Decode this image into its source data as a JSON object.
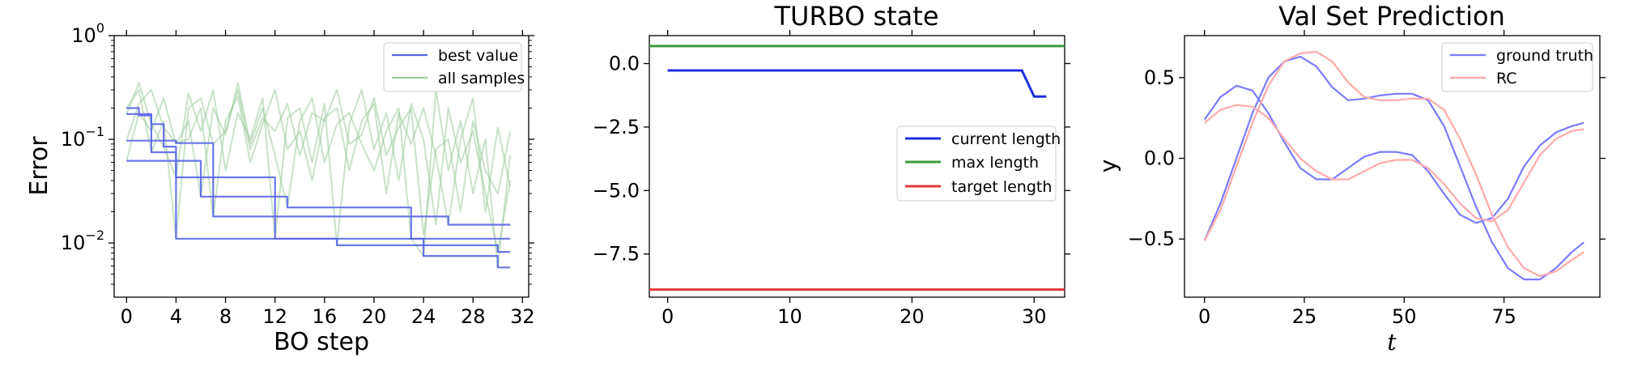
{
  "chart_data": [
    {
      "type": "line",
      "title": "",
      "xlabel": "BO step",
      "ylabel": "Error",
      "yscale": "log",
      "xlim": [
        -1,
        32.5
      ],
      "ylim": [
        0.003,
        1.0
      ],
      "xticks": [
        0,
        4,
        8,
        12,
        16,
        20,
        24,
        28,
        32
      ],
      "xtick_labels": [
        "0",
        "4",
        "8",
        "12",
        "16",
        "20",
        "24",
        "28",
        "32"
      ],
      "yticks": [
        0.01,
        0.1,
        1.0
      ],
      "ytick_labels": [
        {
          "base": "10",
          "exp": "−2"
        },
        {
          "base": "10",
          "exp": "−1"
        },
        {
          "base": "10",
          "exp": "0"
        }
      ],
      "legend": {
        "position": "top-right",
        "entries": [
          {
            "label": "best value",
            "color": "#5b67e8"
          },
          {
            "label": "all samples",
            "color": "#9ccb9c"
          }
        ]
      },
      "series": [
        {
          "legend": "best value",
          "color": "#5b67e8",
          "kind": "step",
          "x": [
            0,
            1,
            2,
            3,
            4,
            5,
            6,
            7,
            8,
            9,
            10,
            11,
            12,
            13,
            14,
            15,
            16,
            17,
            18,
            19,
            20,
            21,
            22,
            23,
            24,
            25,
            26,
            27,
            28,
            29,
            30,
            31
          ],
          "values": [
            0.2,
            0.175,
            0.075,
            0.075,
            0.011,
            0.011,
            0.011,
            0.011,
            0.011,
            0.011,
            0.011,
            0.011,
            0.011,
            0.011,
            0.011,
            0.011,
            0.011,
            0.011,
            0.011,
            0.011,
            0.011,
            0.011,
            0.011,
            0.011,
            0.011,
            0.011,
            0.011,
            0.011,
            0.011,
            0.011,
            0.011,
            0.011
          ]
        },
        {
          "color": "#5b67e8",
          "kind": "step",
          "x": [
            0,
            1,
            2,
            3,
            4,
            5,
            6,
            7,
            8,
            9,
            10,
            11,
            12,
            13,
            14,
            15,
            16,
            17,
            18,
            19,
            20,
            21,
            22,
            23,
            24,
            25,
            26,
            27,
            28,
            29,
            30,
            31
          ],
          "values": [
            0.175,
            0.17,
            0.14,
            0.085,
            0.043,
            0.043,
            0.043,
            0.043,
            0.043,
            0.043,
            0.043,
            0.043,
            0.011,
            0.011,
            0.011,
            0.011,
            0.011,
            0.0095,
            0.0095,
            0.0095,
            0.0095,
            0.0095,
            0.0095,
            0.0095,
            0.0095,
            0.0095,
            0.0095,
            0.0095,
            0.0095,
            0.0095,
            0.0082,
            0.0082
          ]
        },
        {
          "color": "#5b67e8",
          "kind": "step",
          "x": [
            0,
            1,
            2,
            3,
            4,
            5,
            6,
            7,
            8,
            9,
            10,
            11,
            12,
            13,
            14,
            15,
            16,
            17,
            18,
            19,
            20,
            21,
            22,
            23,
            24,
            25,
            26,
            27,
            28,
            29,
            30,
            31
          ],
          "values": [
            0.097,
            0.097,
            0.097,
            0.097,
            0.092,
            0.092,
            0.092,
            0.018,
            0.018,
            0.018,
            0.018,
            0.018,
            0.018,
            0.018,
            0.018,
            0.018,
            0.018,
            0.018,
            0.018,
            0.018,
            0.018,
            0.018,
            0.018,
            0.018,
            0.018,
            0.018,
            0.015,
            0.015,
            0.015,
            0.015,
            0.015,
            0.015
          ]
        },
        {
          "color": "#5b67e8",
          "kind": "step",
          "x": [
            0,
            1,
            2,
            3,
            4,
            5,
            6,
            7,
            8,
            9,
            10,
            11,
            12,
            13,
            14,
            15,
            16,
            17,
            18,
            19,
            20,
            21,
            22,
            23,
            24,
            25,
            26,
            27,
            28,
            29,
            30,
            31
          ],
          "values": [
            0.062,
            0.062,
            0.062,
            0.062,
            0.062,
            0.062,
            0.028,
            0.028,
            0.028,
            0.028,
            0.028,
            0.028,
            0.028,
            0.022,
            0.022,
            0.022,
            0.022,
            0.022,
            0.022,
            0.022,
            0.022,
            0.022,
            0.022,
            0.011,
            0.0075,
            0.0075,
            0.0075,
            0.0075,
            0.0075,
            0.0075,
            0.0058,
            0.0058
          ]
        },
        {
          "legend": "all samples",
          "color": "#9ccb9c",
          "kind": "line",
          "x": [
            0,
            1,
            2,
            3,
            4,
            5,
            6,
            7,
            8,
            9,
            10,
            11,
            12,
            13,
            14,
            15,
            16,
            17,
            18,
            19,
            20,
            21,
            22,
            23,
            24,
            25,
            26,
            27,
            28,
            29,
            30,
            31
          ],
          "values": [
            0.2,
            0.3,
            0.075,
            0.15,
            0.011,
            0.2,
            0.25,
            0.09,
            0.12,
            0.3,
            0.08,
            0.16,
            0.12,
            0.22,
            0.07,
            0.18,
            0.15,
            0.3,
            0.09,
            0.11,
            0.25,
            0.07,
            0.13,
            0.2,
            0.012,
            0.08,
            0.1,
            0.02,
            0.15,
            0.05,
            0.03,
            0.12
          ]
        },
        {
          "color": "#9ccb9c",
          "kind": "line",
          "x": [
            0,
            1,
            2,
            3,
            4,
            5,
            6,
            7,
            8,
            9,
            10,
            11,
            12,
            13,
            14,
            15,
            16,
            17,
            18,
            19,
            20,
            21,
            22,
            23,
            24,
            25,
            26,
            27,
            28,
            29,
            30,
            31
          ],
          "values": [
            0.175,
            0.35,
            0.14,
            0.085,
            0.043,
            0.28,
            0.12,
            0.3,
            0.05,
            0.18,
            0.1,
            0.25,
            0.011,
            0.16,
            0.2,
            0.06,
            0.22,
            0.0095,
            0.14,
            0.3,
            0.08,
            0.18,
            0.04,
            0.22,
            0.1,
            0.015,
            0.2,
            0.06,
            0.12,
            0.03,
            0.0082,
            0.04
          ]
        },
        {
          "color": "#9ccb9c",
          "kind": "line",
          "x": [
            0,
            1,
            2,
            3,
            4,
            5,
            6,
            7,
            8,
            9,
            10,
            11,
            12,
            13,
            14,
            15,
            16,
            17,
            18,
            19,
            20,
            21,
            22,
            23,
            24,
            25,
            26,
            27,
            28,
            29,
            30,
            31
          ],
          "values": [
            0.097,
            0.22,
            0.3,
            0.13,
            0.092,
            0.1,
            0.2,
            0.018,
            0.15,
            0.26,
            0.06,
            0.14,
            0.3,
            0.08,
            0.12,
            0.04,
            0.16,
            0.2,
            0.05,
            0.15,
            0.22,
            0.03,
            0.18,
            0.09,
            0.2,
            0.07,
            0.015,
            0.1,
            0.25,
            0.02,
            0.13,
            0.035
          ]
        },
        {
          "color": "#9ccb9c",
          "kind": "line",
          "x": [
            0,
            1,
            2,
            3,
            4,
            5,
            6,
            7,
            8,
            9,
            10,
            11,
            12,
            13,
            14,
            15,
            16,
            17,
            18,
            19,
            20,
            21,
            22,
            23,
            24,
            25,
            26,
            27,
            28,
            29,
            30,
            31
          ],
          "values": [
            0.062,
            0.18,
            0.12,
            0.25,
            0.09,
            0.15,
            0.028,
            0.2,
            0.11,
            0.35,
            0.09,
            0.2,
            0.07,
            0.022,
            0.15,
            0.25,
            0.06,
            0.14,
            0.18,
            0.09,
            0.05,
            0.12,
            0.2,
            0.011,
            0.0075,
            0.3,
            0.05,
            0.15,
            0.03,
            0.1,
            0.0058,
            0.07
          ]
        }
      ]
    },
    {
      "type": "line",
      "title": "TURBO state",
      "xlabel": "",
      "ylabel": "",
      "xlim": [
        -1.5,
        32.5
      ],
      "ylim": [
        -9.2,
        1.1
      ],
      "xticks": [
        0,
        10,
        20,
        30
      ],
      "xtick_labels": [
        "0",
        "10",
        "20",
        "30"
      ],
      "yticks": [
        0.0,
        -2.5,
        -5.0,
        -7.5
      ],
      "ytick_labels": [
        "0.0",
        "−2.5",
        "−5.0",
        "−7.5"
      ],
      "legend": {
        "position": "center-right",
        "entries": [
          {
            "label": "current length",
            "color": "#1f2fe0"
          },
          {
            "label": "max length",
            "color": "#3a9a3a"
          },
          {
            "label": "target length",
            "color": "#e03a3a"
          }
        ]
      },
      "series": [
        {
          "name": "current length",
          "color": "#1f2fe0",
          "x": [
            0,
            29,
            30,
            31
          ],
          "values": [
            -0.27,
            -0.27,
            -1.3,
            -1.3
          ]
        },
        {
          "name": "max length",
          "color": "#3a9a3a",
          "x": [
            -1.5,
            32.5
          ],
          "values": [
            0.69,
            0.69
          ]
        },
        {
          "name": "target length",
          "color": "#e03a3a",
          "x": [
            -1.5,
            32.5
          ],
          "values": [
            -8.9,
            -8.9
          ]
        }
      ]
    },
    {
      "type": "line",
      "title": "Val Set Prediction",
      "xlabel": "t",
      "ylabel": "y",
      "xlim": [
        -5,
        99
      ],
      "ylim": [
        -0.86,
        0.76
      ],
      "xticks": [
        0,
        25,
        50,
        75
      ],
      "xtick_labels": [
        "0",
        "25",
        "50",
        "75"
      ],
      "yticks": [
        0.5,
        0.0,
        -0.5
      ],
      "ytick_labels": [
        "0.5",
        "0.0",
        "−0.5"
      ],
      "legend": {
        "position": "top-right",
        "entries": [
          {
            "label": "ground truth",
            "color": "#7b7bff"
          },
          {
            "label": "RC",
            "color": "#ffaaaa"
          }
        ]
      },
      "series": [
        {
          "legend": "ground truth",
          "color": "#7b7bff",
          "x": [
            0,
            4,
            8,
            12,
            16,
            20,
            24,
            28,
            32,
            36,
            40,
            44,
            48,
            52,
            56,
            60,
            64,
            68,
            72,
            76,
            80,
            84,
            88,
            92,
            95
          ],
          "values": [
            0.24,
            0.38,
            0.45,
            0.42,
            0.28,
            0.1,
            -0.06,
            -0.13,
            -0.13,
            -0.06,
            0.01,
            0.04,
            0.04,
            0.02,
            -0.08,
            -0.22,
            -0.35,
            -0.4,
            -0.37,
            -0.25,
            -0.05,
            0.08,
            0.16,
            0.2,
            0.22
          ]
        },
        {
          "color": "#7b7bff",
          "x": [
            0,
            4,
            8,
            12,
            16,
            20,
            24,
            28,
            32,
            36,
            40,
            44,
            48,
            52,
            56,
            60,
            64,
            68,
            72,
            76,
            80,
            84,
            88,
            92,
            95
          ],
          "values": [
            -0.51,
            -0.28,
            0.0,
            0.28,
            0.5,
            0.6,
            0.63,
            0.57,
            0.44,
            0.36,
            0.37,
            0.39,
            0.4,
            0.4,
            0.36,
            0.2,
            -0.05,
            -0.3,
            -0.52,
            -0.68,
            -0.75,
            -0.75,
            -0.68,
            -0.58,
            -0.52
          ]
        },
        {
          "legend": "RC",
          "color": "#ffaaaa",
          "x": [
            0,
            4,
            8,
            12,
            16,
            20,
            24,
            28,
            32,
            36,
            40,
            44,
            48,
            52,
            56,
            60,
            64,
            68,
            72,
            76,
            80,
            84,
            88,
            92,
            95
          ],
          "values": [
            0.22,
            0.3,
            0.33,
            0.32,
            0.25,
            0.12,
            0.0,
            -0.08,
            -0.13,
            -0.13,
            -0.08,
            -0.03,
            -0.01,
            -0.01,
            -0.06,
            -0.16,
            -0.28,
            -0.37,
            -0.39,
            -0.32,
            -0.15,
            0.02,
            0.12,
            0.17,
            0.18
          ]
        },
        {
          "color": "#ffaaaa",
          "x": [
            0,
            4,
            8,
            12,
            16,
            20,
            24,
            28,
            32,
            36,
            40,
            44,
            48,
            52,
            56,
            60,
            64,
            68,
            72,
            76,
            80,
            84,
            88,
            92,
            95
          ],
          "values": [
            -0.51,
            -0.32,
            -0.05,
            0.22,
            0.45,
            0.6,
            0.65,
            0.66,
            0.6,
            0.47,
            0.38,
            0.36,
            0.36,
            0.37,
            0.37,
            0.3,
            0.12,
            -0.1,
            -0.35,
            -0.55,
            -0.68,
            -0.73,
            -0.7,
            -0.63,
            -0.58
          ]
        }
      ]
    }
  ]
}
